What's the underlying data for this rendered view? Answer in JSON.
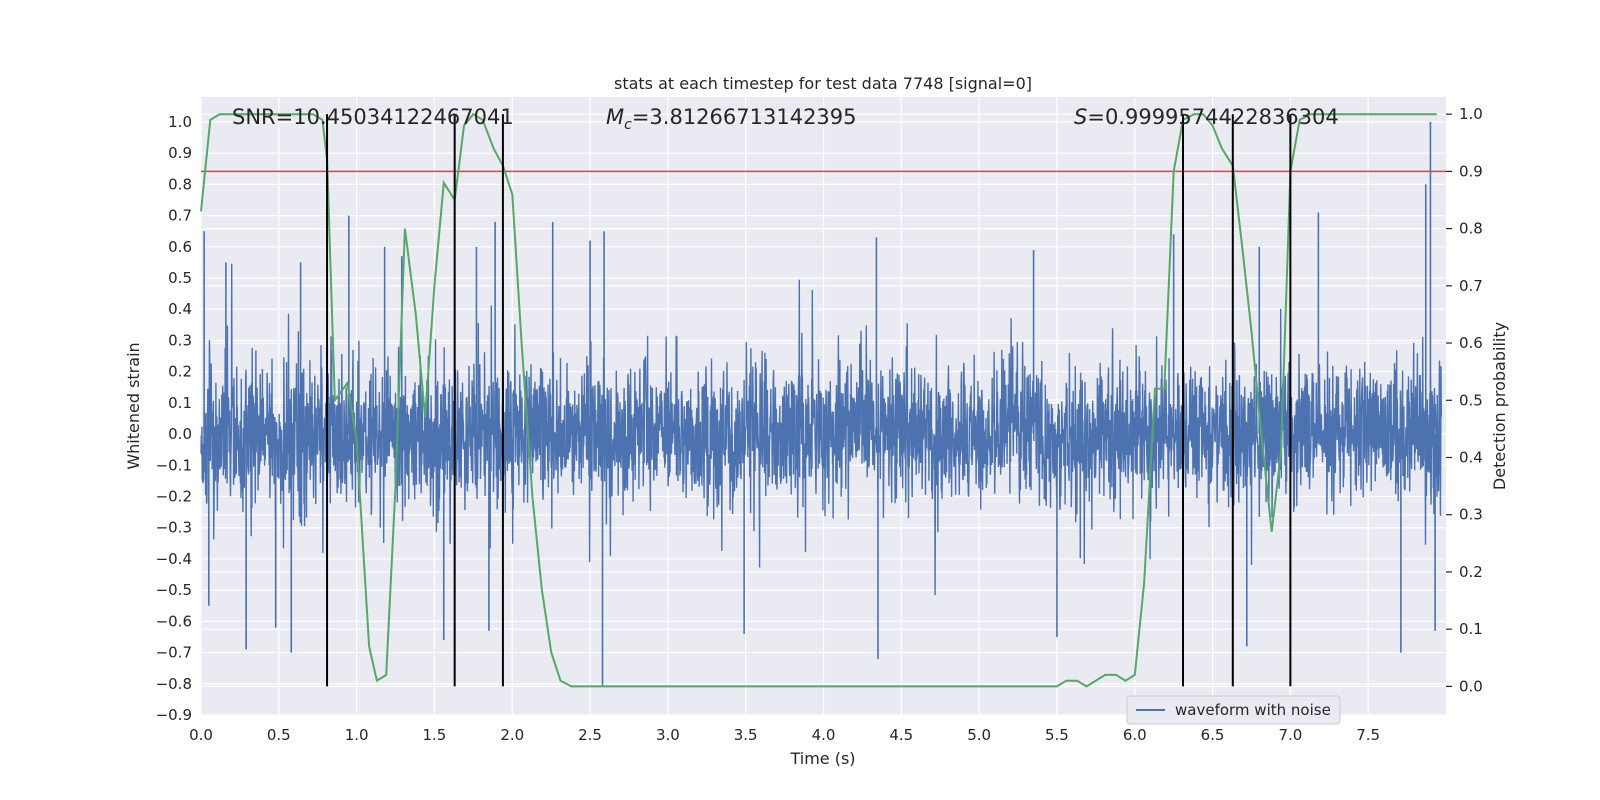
{
  "chart_data": {
    "type": "line",
    "title": "stats at each timestep for test data 7748 [signal=0]",
    "xlabel": "Time (s)",
    "ylabel": "Whitened strain",
    "ylabel_right": "Detection probability",
    "xlim": [
      0.0,
      8.0
    ],
    "ylim": [
      -0.9,
      1.08
    ],
    "ylim_right": [
      -0.05,
      1.03
    ],
    "x_ticks": [
      "0.0",
      "0.5",
      "1.0",
      "1.5",
      "2.0",
      "2.5",
      "3.0",
      "3.5",
      "4.0",
      "4.5",
      "5.0",
      "5.5",
      "6.0",
      "6.5",
      "7.0",
      "7.5"
    ],
    "y_ticks": [
      "1.0",
      "0.9",
      "0.8",
      "0.7",
      "0.6",
      "0.5",
      "0.4",
      "0.3",
      "0.2",
      "0.1",
      "0.0",
      "−0.1",
      "−0.2",
      "−0.3",
      "−0.4",
      "−0.5",
      "−0.6",
      "−0.7",
      "−0.8",
      "−0.9"
    ],
    "y_ticks_right": [
      "1.0",
      "0.9",
      "0.8",
      "0.7",
      "0.6",
      "0.5",
      "0.4",
      "0.3",
      "0.2",
      "0.1",
      "0.0"
    ],
    "grid": true,
    "legend": {
      "entries": [
        "waveform with noise"
      ],
      "placement": "bottom-right"
    },
    "annotations": {
      "snr": "SNR=10.45034122467041",
      "mc_symbol": "M",
      "mc_sub": "c",
      "mc_value": "=3.81266713142395",
      "s_symbol": "S",
      "s_value": "=0.9999574422836304"
    },
    "threshold": {
      "value": 0.9,
      "axis": "right",
      "color": "#c44e52"
    },
    "detection_markers_x": [
      0.81,
      1.63,
      1.94,
      6.31,
      6.63,
      7.0
    ],
    "waveform": {
      "name": "waveform with noise",
      "color": "#4c72b0",
      "typical_range": [
        -0.28,
        0.28
      ],
      "peak_samples": [
        {
          "x": 0.02,
          "y": 0.65
        },
        {
          "x": 0.05,
          "y": -0.55
        },
        {
          "x": 0.16,
          "y": 0.55
        },
        {
          "x": 0.29,
          "y": -0.69
        },
        {
          "x": 0.48,
          "y": -0.62
        },
        {
          "x": 0.58,
          "y": -0.7
        },
        {
          "x": 0.64,
          "y": 0.55
        },
        {
          "x": 0.95,
          "y": 0.7
        },
        {
          "x": 1.18,
          "y": 0.6
        },
        {
          "x": 1.29,
          "y": 0.57
        },
        {
          "x": 1.56,
          "y": -0.66
        },
        {
          "x": 1.77,
          "y": 0.6
        },
        {
          "x": 1.85,
          "y": -0.63
        },
        {
          "x": 1.89,
          "y": 0.68
        },
        {
          "x": 2.26,
          "y": 0.68
        },
        {
          "x": 2.5,
          "y": 0.62
        },
        {
          "x": 2.58,
          "y": -0.81
        },
        {
          "x": 2.59,
          "y": 0.65
        },
        {
          "x": 3.49,
          "y": -0.64
        },
        {
          "x": 4.35,
          "y": -0.72
        },
        {
          "x": 4.34,
          "y": 0.63
        },
        {
          "x": 5.35,
          "y": 0.59
        },
        {
          "x": 5.5,
          "y": -0.65
        },
        {
          "x": 6.25,
          "y": 0.64
        },
        {
          "x": 6.72,
          "y": -0.68
        },
        {
          "x": 6.8,
          "y": 0.6
        },
        {
          "x": 7.18,
          "y": 0.71
        },
        {
          "x": 7.71,
          "y": -0.7
        },
        {
          "x": 7.87,
          "y": 0.8
        },
        {
          "x": 7.9,
          "y": 1.0
        },
        {
          "x": 7.93,
          "y": -0.63
        }
      ]
    },
    "probability": {
      "color": "#55a868",
      "x": [
        0.0,
        0.06,
        0.12,
        0.25,
        0.5,
        0.72,
        0.78,
        0.81,
        0.86,
        0.94,
        1.0,
        1.08,
        1.13,
        1.19,
        1.25,
        1.31,
        1.38,
        1.44,
        1.5,
        1.56,
        1.63,
        1.69,
        1.75,
        1.81,
        1.88,
        1.94,
        2.0,
        2.06,
        2.13,
        2.19,
        2.25,
        2.31,
        2.38,
        2.5,
        2.75,
        3.0,
        3.5,
        4.0,
        4.5,
        5.0,
        5.25,
        5.5,
        5.56,
        5.63,
        5.69,
        5.75,
        5.81,
        5.88,
        5.94,
        6.0,
        6.06,
        6.13,
        6.19,
        6.25,
        6.31,
        6.38,
        6.44,
        6.5,
        6.56,
        6.63,
        6.69,
        6.75,
        6.81,
        6.88,
        6.94,
        7.0,
        7.06,
        7.13,
        7.5,
        7.94
      ],
      "y": [
        0.83,
        0.99,
        1.0,
        1.0,
        1.0,
        1.0,
        0.99,
        0.92,
        0.5,
        0.53,
        0.43,
        0.07,
        0.01,
        0.02,
        0.35,
        0.8,
        0.65,
        0.47,
        0.7,
        0.88,
        0.85,
        0.98,
        1.0,
        0.99,
        0.94,
        0.91,
        0.86,
        0.6,
        0.33,
        0.17,
        0.06,
        0.01,
        0.0,
        0.0,
        0.0,
        0.0,
        0.0,
        0.0,
        0.0,
        0.0,
        0.0,
        0.0,
        0.01,
        0.01,
        0.0,
        0.01,
        0.02,
        0.02,
        0.01,
        0.02,
        0.18,
        0.52,
        0.52,
        0.9,
        0.99,
        1.0,
        1.0,
        0.98,
        0.94,
        0.91,
        0.77,
        0.62,
        0.45,
        0.27,
        0.41,
        0.9,
        0.99,
        1.0,
        1.0,
        1.0
      ]
    }
  }
}
